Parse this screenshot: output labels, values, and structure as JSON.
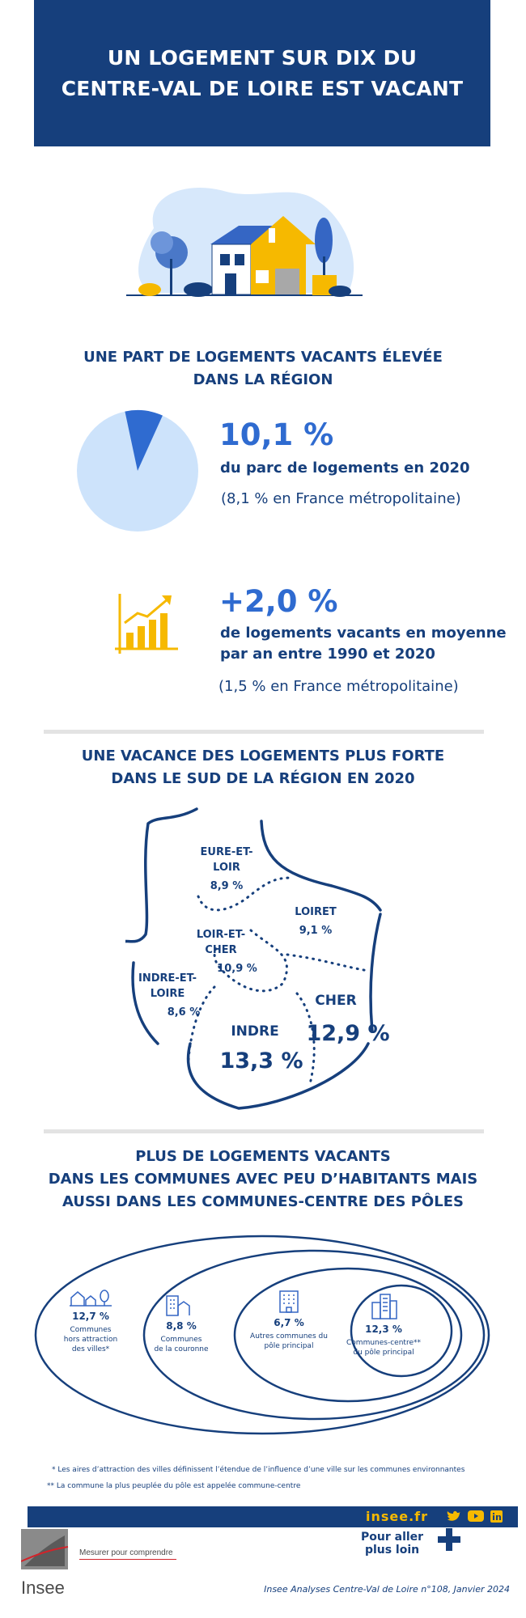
{
  "header": {
    "title_line1": "UN LOGEMENT SUR DIX DU",
    "title_line2": "CENTRE-VAL DE LOIRE EST VACANT"
  },
  "section1": {
    "title_line1": "UNE PART DE LOGEMENTS VACANTS ÉLEVÉE",
    "title_line2": "DANS LA RÉGION",
    "share_value": "10,1 %",
    "share_fraction": 0.101,
    "share_label": "du parc de logements en 2020",
    "share_comparison": "(8,1 % en France métropolitaine)",
    "growth_value": "+2,0 %",
    "growth_label_line1": "de logements vacants en moyenne",
    "growth_label_line2": "par an entre 1990 et 2020",
    "growth_comparison": "(1,5 % en France métropolitaine)"
  },
  "section2": {
    "title_line1": "UNE VACANCE DES LOGEMENTS PLUS FORTE",
    "title_line2": "DANS LE SUD DE LA RÉGION EN 2020",
    "departments": [
      {
        "name_line1": "EURE-ET-",
        "name_line2": "LOIR",
        "value": "8,9 %"
      },
      {
        "name_line1": "LOIRET",
        "name_line2": "",
        "value": "9,1 %"
      },
      {
        "name_line1": "LOIR-ET-",
        "name_line2": "CHER",
        "value": "10,9 %"
      },
      {
        "name_line1": "INDRE-ET-",
        "name_line2": "LOIRE",
        "value": "8,6 %"
      },
      {
        "name_line1": "CHER",
        "name_line2": "",
        "value": "12,9 %"
      },
      {
        "name_line1": "INDRE",
        "name_line2": "",
        "value": "13,3 %"
      }
    ]
  },
  "section3": {
    "title_line1": "PLUS DE LOGEMENTS VACANTS",
    "title_line2": "DANS LES COMMUNES AVEC PEU D’HABITANTS MAIS",
    "title_line3": "AUSSI DANS LES COMMUNES-CENTRE DES PÔLES",
    "categories": [
      {
        "value": "12,7 %",
        "label_line1": "Communes",
        "label_line2": "hors attraction",
        "label_line3": "des villes*",
        "icon": "village-icon"
      },
      {
        "value": "8,8 %",
        "label_line1": "Communes",
        "label_line2": "de la couronne",
        "label_line3": "",
        "icon": "suburb-icon"
      },
      {
        "value": "6,7 %",
        "label_line1": "Autres communes du",
        "label_line2": "pôle principal",
        "label_line3": "",
        "icon": "building-icon"
      },
      {
        "value": "12,3 %",
        "label_line1": "Communes-centre**",
        "label_line2": "du pôle principal",
        "label_line3": "",
        "icon": "city-icon"
      }
    ]
  },
  "footnotes": {
    "note1": "* Les aires d’attraction des villes définissent l’étendue de l’influence d’une ville sur les communes environnantes",
    "note2": "** La commune la plus peuplée du pôle est appelée commune-centre"
  },
  "footer": {
    "site": "insee.fr",
    "brand": "Insee",
    "tagline": "Mesurer pour comprendre",
    "more_line1": "Pour aller",
    "more_line2": "plus loin",
    "publication": "Insee Analyses Centre-Val de Loire n°108, Janvier 2024",
    "colors": {
      "navy": "#163f7c",
      "accent": "#f6b900",
      "blue": "#2f6bd0",
      "light_blue": "#cde3fb"
    }
  }
}
